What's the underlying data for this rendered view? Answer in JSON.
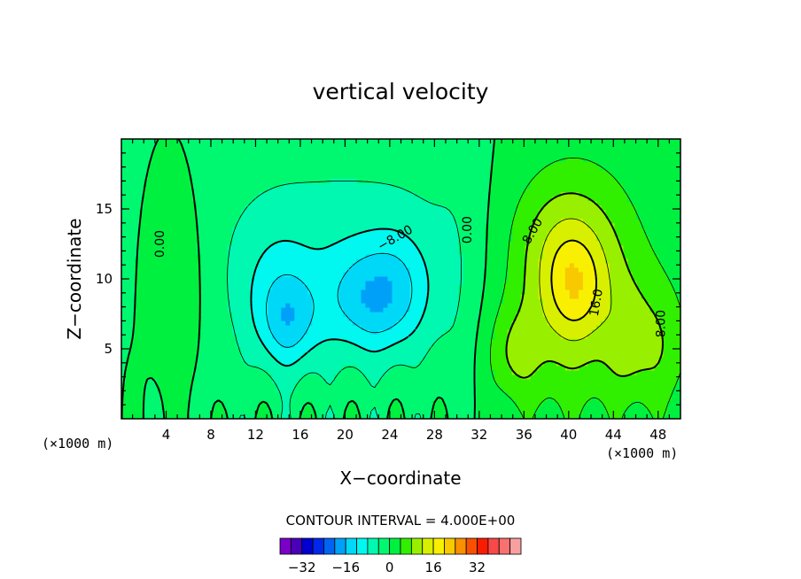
{
  "chart_data": {
    "type": "heatmap",
    "title": "vertical velocity",
    "xlabel": "X−coordinate",
    "ylabel": "Z−coordinate",
    "x_unit_left": "(×1000 m)",
    "x_unit_right": "(×1000 m)",
    "xlim": [
      0,
      50
    ],
    "ylim": [
      0,
      20
    ],
    "x_ticks": [
      4,
      8,
      12,
      16,
      20,
      24,
      28,
      32,
      36,
      40,
      44,
      48
    ],
    "y_ticks": [
      5,
      10,
      15
    ],
    "contour_interval_text": "CONTOUR INTERVAL = 4.000E+00",
    "contour_labels": [
      {
        "text": "0.00",
        "x": 3.5,
        "y": 12.5,
        "angle": -90
      },
      {
        "text": "−8.00",
        "x": 24.5,
        "y": 12.9,
        "angle": -30
      },
      {
        "text": "0.00",
        "x": 31.0,
        "y": 13.5,
        "angle": -90
      },
      {
        "text": "8.00",
        "x": 36.8,
        "y": 13.4,
        "angle": -60
      },
      {
        "text": "16.0",
        "x": 42.5,
        "y": 8.3,
        "angle": -80
      },
      {
        "text": "8.00",
        "x": 48.3,
        "y": 6.8,
        "angle": -90
      }
    ],
    "fields": [
      {
        "x": 5,
        "y": 10,
        "v": 4,
        "sx": 2,
        "sz": 5
      },
      {
        "x": 13.5,
        "y": 9,
        "v": -4,
        "sx": 2.5,
        "sz": 4
      },
      {
        "x": 20,
        "y": 11,
        "v": -6.5,
        "sx": 9,
        "sz": 6
      },
      {
        "x": 15,
        "y": 7,
        "v": -8.5,
        "sx": 1.8,
        "sz": 2.3
      },
      {
        "x": 22.5,
        "y": 8.5,
        "v": -10,
        "sx": 2.8,
        "sz": 2.6
      },
      {
        "x": 25,
        "y": 10,
        "v": -3,
        "sx": 2,
        "sz": 3
      },
      {
        "x": 30,
        "y": 10,
        "v": -1.5,
        "sx": 1.5,
        "sz": 10
      },
      {
        "x": 40.5,
        "y": 9.5,
        "v": 12,
        "sx": 4.5,
        "sz": 6
      },
      {
        "x": 40.5,
        "y": 9.5,
        "v": 8,
        "sx": 1.8,
        "sz": 2.5
      },
      {
        "x": 39,
        "y": 13,
        "v": 3,
        "sx": 3,
        "sz": 3
      },
      {
        "x": 35,
        "y": 4.5,
        "v": 6,
        "sx": 1.8,
        "sz": 2.5
      },
      {
        "x": 48,
        "y": 5,
        "v": 6,
        "sx": 2.2,
        "sz": 3.5
      },
      {
        "x": 45,
        "y": 5.5,
        "v": 3,
        "sx": 1.2,
        "sz": 2.5
      }
    ],
    "colorbar": {
      "colors": [
        "#7a00c8",
        "#4a00b8",
        "#0000d0",
        "#0028e8",
        "#0064f0",
        "#00a0f8",
        "#00d8f8",
        "#00f8f0",
        "#00f8b0",
        "#00f870",
        "#00f040",
        "#30f000",
        "#98f000",
        "#d8f000",
        "#f8f000",
        "#f8c800",
        "#f89000",
        "#f85000",
        "#f81c00",
        "#f84848",
        "#f87070",
        "#f8a0a0"
      ],
      "min": -40,
      "step": 4,
      "tick_labels": [
        "−32",
        "−16",
        "0",
        "16",
        "32"
      ],
      "tick_values": [
        -32,
        -16,
        0,
        16,
        32
      ]
    }
  }
}
